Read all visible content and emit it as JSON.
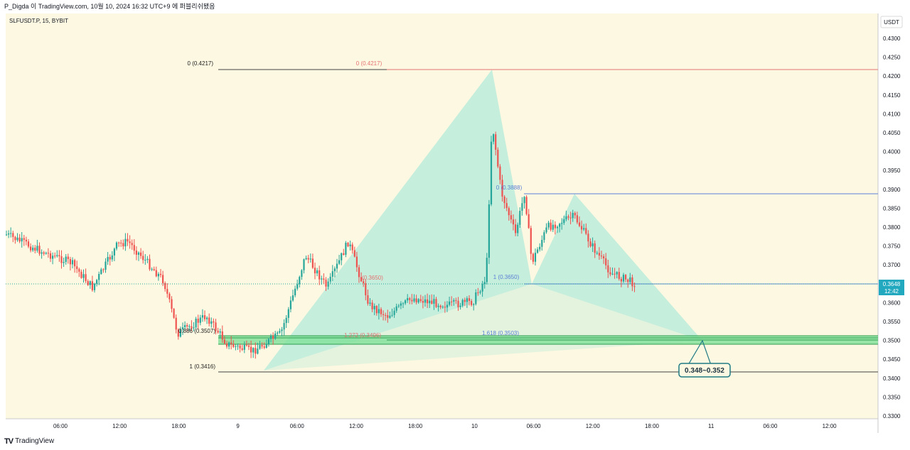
{
  "header": {
    "publish_line": "P_Digda 이 TradingView.com, 10월 10, 2024 16:32 UTC+9 에 퍼블리쉬됐음"
  },
  "chart": {
    "symbol_line": "SLFUSDT.P, 15, BYBIT",
    "currency": "USDT",
    "price_axis_labels": [
      "0.4300",
      "0.4250",
      "0.4200",
      "0.4150",
      "0.4100",
      "0.4050",
      "0.4000",
      "0.3950",
      "0.3900",
      "0.3850",
      "0.3800",
      "0.3750",
      "0.3700",
      "0.3650",
      "0.3600",
      "0.3550",
      "0.3500",
      "0.3450",
      "0.3400",
      "0.3350",
      "0.3300"
    ],
    "time_axis_labels": [
      "06:00",
      "12:00",
      "18:00",
      "9",
      "06:00",
      "12:00",
      "18:00",
      "10",
      "06:00",
      "12:00",
      "18:00",
      "11",
      "06:00",
      "12:00"
    ],
    "last_price": "0.3648",
    "countdown": "12:42",
    "target_zone_label": "0.348~0.352",
    "fib_labels": {
      "left_top": "0 (0.4217)",
      "mid_top": "0 (0.4217)",
      "left_886": "0.886 (0.3507)",
      "left_1": "1 (0.3416)",
      "mid_1272": "1.272 (0.3496)",
      "mid_3650": "(0.3650)",
      "right_0": "0 (0.3888)",
      "right_1": "1 (0.3650)",
      "right_1618": "1.618 (0.3503)"
    },
    "colors": {
      "background": "#fdf8e1",
      "up_candle": "#26a69a",
      "down_candle": "#ef5350",
      "pattern_fill": "#b2ebd9",
      "zone_fill": "#7fe09a",
      "last_price_badge": "#22a8bf",
      "fib_red_line": "#e57373",
      "fib_blue_line": "#5b7fd6"
    }
  },
  "footer": {
    "brand": "TradingView"
  }
}
